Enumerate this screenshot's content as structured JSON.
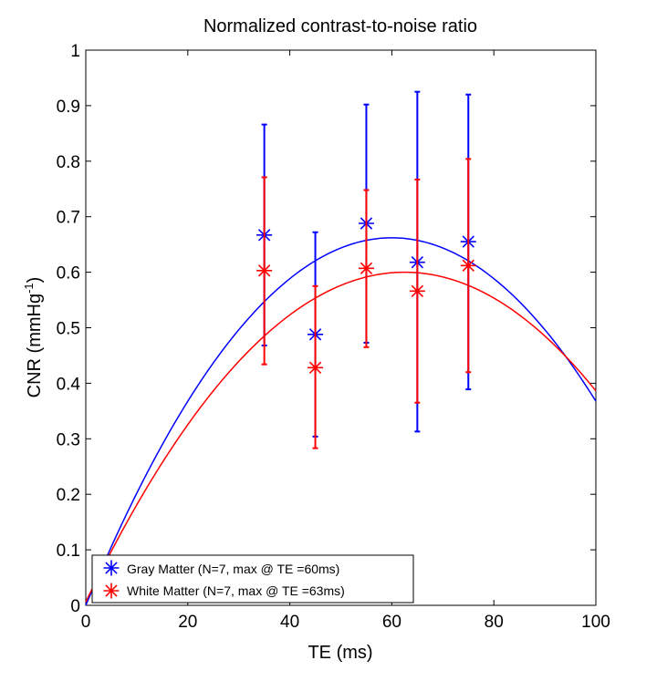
{
  "chart_data": {
    "type": "scatter",
    "title": "Normalized contrast-to-noise ratio",
    "xlabel": "TE (ms)",
    "ylabel_main": "CNR (mmHg",
    "ylabel_sup": "-1",
    "ylabel_close": ")",
    "xlim": [
      0,
      100
    ],
    "ylim": [
      0,
      1
    ],
    "xticks": [
      0,
      20,
      40,
      60,
      80,
      100
    ],
    "yticks": [
      0,
      0.1,
      0.2,
      0.3,
      0.4,
      0.5,
      0.6,
      0.7,
      0.8,
      0.9,
      1
    ],
    "xtick_labels": [
      "0",
      "20",
      "40",
      "60",
      "80",
      "100"
    ],
    "ytick_labels": [
      "0",
      "0.1",
      "0.2",
      "0.3",
      "0.4",
      "0.5",
      "0.6",
      "0.7",
      "0.8",
      "0.9",
      "1"
    ],
    "grid": false,
    "legend_position": "bottom-left",
    "series": [
      {
        "name": "Gray Matter (N=7, max @ TE =60ms)",
        "color": "#0000ff",
        "marker": "asterisk",
        "x": [
          35,
          45,
          55,
          65,
          75
        ],
        "y": [
          0.667,
          0.488,
          0.688,
          0.618,
          0.655
        ],
        "err_low": [
          0.468,
          0.304,
          0.473,
          0.313,
          0.389
        ],
        "err_high": [
          0.866,
          0.672,
          0.902,
          0.925,
          0.92
        ],
        "fit_peak_x": 60,
        "fit_peak_y": 0.662,
        "fit_curve_a": 0.000184
      },
      {
        "name": "White Matter (N=7, max @ TE =63ms)",
        "color": "#ff0000",
        "marker": "asterisk",
        "x": [
          35,
          45,
          55,
          65,
          75
        ],
        "y": [
          0.603,
          0.428,
          0.607,
          0.566,
          0.612
        ],
        "err_low": [
          0.434,
          0.283,
          0.465,
          0.365,
          0.42
        ],
        "err_high": [
          0.771,
          0.575,
          0.748,
          0.767,
          0.804
        ],
        "fit_peak_x": 62.5,
        "fit_peak_y": 0.6,
        "fit_curve_a": 0.000152
      }
    ]
  }
}
